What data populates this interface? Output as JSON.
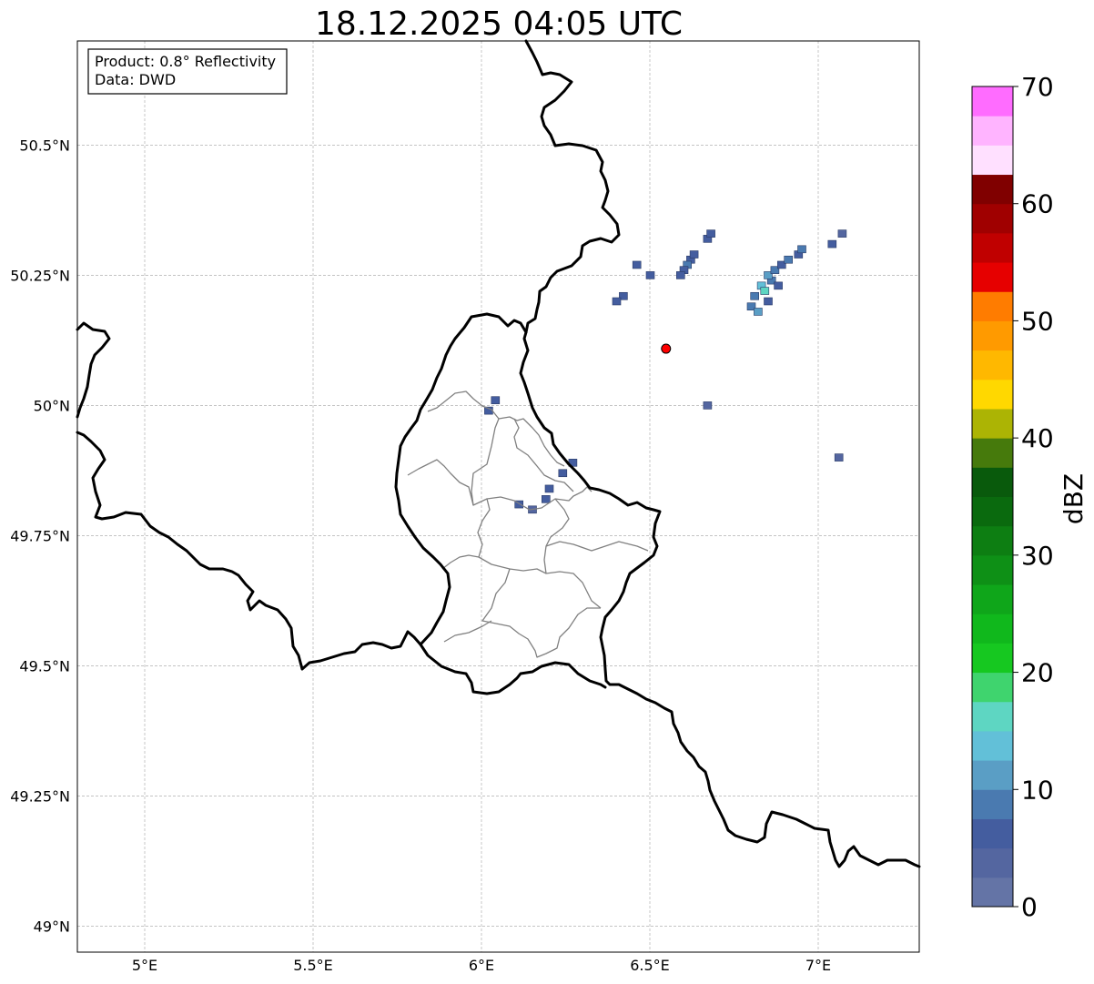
{
  "title": "18.12.2025 04:05 UTC",
  "info_box": {
    "product": "Product: 0.8° Reflectivity",
    "data": "Data: DWD"
  },
  "axes": {
    "lon_ticks": [
      {
        "value": 5.0,
        "label": "5°E"
      },
      {
        "value": 5.5,
        "label": "5.5°E"
      },
      {
        "value": 6.0,
        "label": "6°E"
      },
      {
        "value": 6.5,
        "label": "6.5°E"
      },
      {
        "value": 7.0,
        "label": "7°E"
      }
    ],
    "lat_ticks": [
      {
        "value": 50.5,
        "label": "50.5°N"
      },
      {
        "value": 50.25,
        "label": "50.25°N"
      },
      {
        "value": 50.0,
        "label": "50°N"
      },
      {
        "value": 49.75,
        "label": "49.75°N"
      },
      {
        "value": 49.5,
        "label": "49.5°N"
      },
      {
        "value": 49.25,
        "label": "49.25°N"
      },
      {
        "value": 49.0,
        "label": "49°N"
      }
    ],
    "lon_range": [
      4.8,
      7.3
    ],
    "lat_range": [
      48.95,
      50.7
    ],
    "grid": true
  },
  "colorbar": {
    "label": "dBZ",
    "ticks": [
      {
        "value": 0,
        "label": "0"
      },
      {
        "value": 10,
        "label": "10"
      },
      {
        "value": 20,
        "label": "20"
      },
      {
        "value": 30,
        "label": "30"
      },
      {
        "value": 40,
        "label": "40"
      },
      {
        "value": 50,
        "label": "50"
      },
      {
        "value": 60,
        "label": "60"
      },
      {
        "value": 70,
        "label": "70"
      }
    ],
    "range": [
      0,
      70
    ],
    "step": 2.5,
    "colors": [
      "#6474a6",
      "#5466a0",
      "#445d9f",
      "#4a7ab0",
      "#5a9ec5",
      "#62c0d8",
      "#5ed6c2",
      "#3fd46e",
      "#16c820",
      "#10b81c",
      "#0fa61a",
      "#0e9016",
      "#0d7e12",
      "#0a6a0e",
      "#095a0c",
      "#467a0c",
      "#acb404",
      "#ffd800",
      "#ffb800",
      "#ff9a00",
      "#ff7c00",
      "#e60000",
      "#c00000",
      "#a00000",
      "#800000",
      "#ffe0ff",
      "#ffb4ff",
      "#ff6cff",
      "#ee36ee"
    ]
  },
  "radar_site": {
    "lon": 6.548,
    "lat": 50.109,
    "color": "#ff0000"
  },
  "radar_echoes": [
    {
      "lon": 6.86,
      "lat": 50.24,
      "dbz": 8
    },
    {
      "lon": 6.85,
      "lat": 50.25,
      "dbz": 10
    },
    {
      "lon": 6.83,
      "lat": 50.23,
      "dbz": 14
    },
    {
      "lon": 6.84,
      "lat": 50.22,
      "dbz": 16
    },
    {
      "lon": 6.87,
      "lat": 50.26,
      "dbz": 8
    },
    {
      "lon": 6.89,
      "lat": 50.27,
      "dbz": 6
    },
    {
      "lon": 6.91,
      "lat": 50.28,
      "dbz": 8
    },
    {
      "lon": 6.94,
      "lat": 50.29,
      "dbz": 6
    },
    {
      "lon": 6.95,
      "lat": 50.3,
      "dbz": 8
    },
    {
      "lon": 6.81,
      "lat": 50.21,
      "dbz": 9
    },
    {
      "lon": 6.8,
      "lat": 50.19,
      "dbz": 8
    },
    {
      "lon": 6.82,
      "lat": 50.18,
      "dbz": 12
    },
    {
      "lon": 6.85,
      "lat": 50.2,
      "dbz": 6
    },
    {
      "lon": 6.88,
      "lat": 50.23,
      "dbz": 6
    },
    {
      "lon": 6.62,
      "lat": 50.28,
      "dbz": 6
    },
    {
      "lon": 6.61,
      "lat": 50.27,
      "dbz": 8
    },
    {
      "lon": 6.6,
      "lat": 50.26,
      "dbz": 6
    },
    {
      "lon": 6.63,
      "lat": 50.29,
      "dbz": 6
    },
    {
      "lon": 6.67,
      "lat": 50.32,
      "dbz": 6
    },
    {
      "lon": 6.68,
      "lat": 50.33,
      "dbz": 5
    },
    {
      "lon": 6.59,
      "lat": 50.25,
      "dbz": 5
    },
    {
      "lon": 6.42,
      "lat": 50.21,
      "dbz": 6
    },
    {
      "lon": 6.4,
      "lat": 50.2,
      "dbz": 5
    },
    {
      "lon": 6.46,
      "lat": 50.27,
      "dbz": 5
    },
    {
      "lon": 6.5,
      "lat": 50.25,
      "dbz": 5
    },
    {
      "lon": 7.04,
      "lat": 50.31,
      "dbz": 5
    },
    {
      "lon": 7.07,
      "lat": 50.33,
      "dbz": 4
    },
    {
      "lon": 6.02,
      "lat": 49.99,
      "dbz": 5
    },
    {
      "lon": 6.04,
      "lat": 50.01,
      "dbz": 5
    },
    {
      "lon": 6.27,
      "lat": 49.89,
      "dbz": 6
    },
    {
      "lon": 6.2,
      "lat": 49.84,
      "dbz": 6
    },
    {
      "lon": 6.19,
      "lat": 49.82,
      "dbz": 5
    },
    {
      "lon": 6.11,
      "lat": 49.81,
      "dbz": 5
    },
    {
      "lon": 6.15,
      "lat": 49.8,
      "dbz": 4
    },
    {
      "lon": 6.24,
      "lat": 49.87,
      "dbz": 5
    },
    {
      "lon": 7.06,
      "lat": 49.9,
      "dbz": 4
    },
    {
      "lon": 6.67,
      "lat": 50.0,
      "dbz": 4
    }
  ]
}
